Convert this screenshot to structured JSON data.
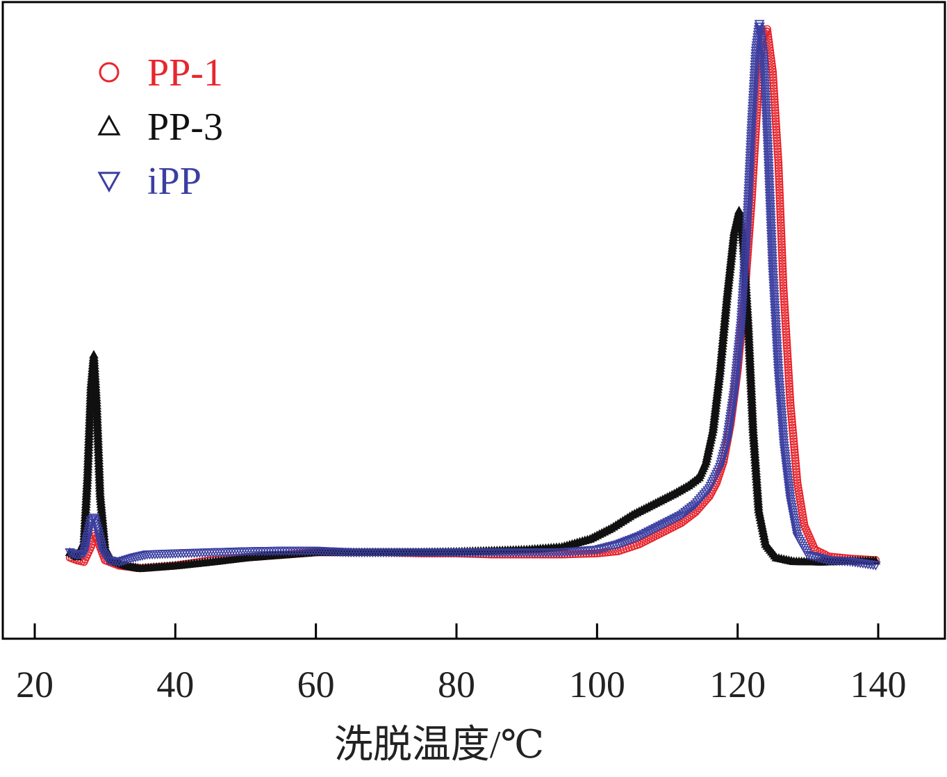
{
  "chart_data": {
    "type": "scatter",
    "xlabel": "洗脱温度/℃",
    "ylabel": "",
    "xlim": [
      18,
      150
    ],
    "ylim": [
      -0.12,
      1.05
    ],
    "x_ticks": [
      20,
      40,
      60,
      80,
      100,
      120,
      140
    ],
    "y_ticks": [],
    "grid": false,
    "legend_position": "top-left",
    "series": [
      {
        "name": "PP-1",
        "color": "#e8262d",
        "marker": "circle",
        "points": [
          [
            25,
            0.01
          ],
          [
            26,
            0.005
          ],
          [
            27,
            0.002
          ],
          [
            28,
            0.03
          ],
          [
            28.5,
            0.055
          ],
          [
            29,
            0.04
          ],
          [
            30,
            0.005
          ],
          [
            32,
            -0.005
          ],
          [
            35,
            -0.01
          ],
          [
            40,
            -0.005
          ],
          [
            45,
            0.005
          ],
          [
            50,
            0.01
          ],
          [
            55,
            0.015
          ],
          [
            60,
            0.02
          ],
          [
            65,
            0.02
          ],
          [
            70,
            0.02
          ],
          [
            75,
            0.018
          ],
          [
            80,
            0.018
          ],
          [
            85,
            0.016
          ],
          [
            90,
            0.016
          ],
          [
            95,
            0.016
          ],
          [
            100,
            0.018
          ],
          [
            103,
            0.022
          ],
          [
            106,
            0.035
          ],
          [
            109,
            0.055
          ],
          [
            112,
            0.075
          ],
          [
            114,
            0.095
          ],
          [
            116,
            0.125
          ],
          [
            117,
            0.15
          ],
          [
            118,
            0.19
          ],
          [
            119,
            0.26
          ],
          [
            120,
            0.36
          ],
          [
            121,
            0.5
          ],
          [
            122,
            0.68
          ],
          [
            123,
            0.9
          ],
          [
            123.5,
            0.98
          ],
          [
            124.2,
            1.0
          ],
          [
            125,
            0.92
          ],
          [
            125.8,
            0.75
          ],
          [
            126.5,
            0.52
          ],
          [
            127.5,
            0.3
          ],
          [
            128.5,
            0.15
          ],
          [
            129.5,
            0.07
          ],
          [
            131,
            0.025
          ],
          [
            133,
            0.012
          ],
          [
            136,
            0.008
          ],
          [
            140,
            0.005
          ]
        ]
      },
      {
        "name": "PP-3",
        "color": "#111111",
        "marker": "triangle-up",
        "points": [
          [
            25,
            0.02
          ],
          [
            26,
            0.012
          ],
          [
            27,
            0.04
          ],
          [
            27.5,
            0.16
          ],
          [
            28,
            0.33
          ],
          [
            28.4,
            0.39
          ],
          [
            28.8,
            0.3
          ],
          [
            29.3,
            0.13
          ],
          [
            30,
            0.03
          ],
          [
            31,
            0.005
          ],
          [
            33,
            -0.005
          ],
          [
            35,
            -0.01
          ],
          [
            40,
            -0.005
          ],
          [
            45,
            0.002
          ],
          [
            50,
            0.01
          ],
          [
            55,
            0.015
          ],
          [
            60,
            0.02
          ],
          [
            65,
            0.02
          ],
          [
            70,
            0.02
          ],
          [
            75,
            0.02
          ],
          [
            80,
            0.021
          ],
          [
            85,
            0.023
          ],
          [
            90,
            0.025
          ],
          [
            95,
            0.03
          ],
          [
            99,
            0.045
          ],
          [
            102,
            0.065
          ],
          [
            105,
            0.09
          ],
          [
            108,
            0.11
          ],
          [
            111,
            0.13
          ],
          [
            113,
            0.145
          ],
          [
            114.5,
            0.16
          ],
          [
            115.5,
            0.19
          ],
          [
            116.5,
            0.25
          ],
          [
            117.5,
            0.36
          ],
          [
            118.5,
            0.5
          ],
          [
            119.5,
            0.62
          ],
          [
            120.2,
            0.66
          ],
          [
            120.8,
            0.6
          ],
          [
            121.5,
            0.45
          ],
          [
            122.2,
            0.25
          ],
          [
            123,
            0.1
          ],
          [
            124,
            0.035
          ],
          [
            125.5,
            0.01
          ],
          [
            128,
            0.003
          ],
          [
            132,
            0.002
          ],
          [
            136,
            0.004
          ],
          [
            140,
            0.004
          ]
        ]
      },
      {
        "name": "iPP",
        "color": "#3b3fa0",
        "marker": "triangle-down",
        "points": [
          [
            25,
            0.02
          ],
          [
            26,
            0.015
          ],
          [
            27,
            0.018
          ],
          [
            27.5,
            0.05
          ],
          [
            28,
            0.08
          ],
          [
            28.5,
            0.085
          ],
          [
            29,
            0.06
          ],
          [
            29.7,
            0.02
          ],
          [
            30.5,
            0.005
          ],
          [
            32,
            0.002
          ],
          [
            34,
            0.01
          ],
          [
            36,
            0.016
          ],
          [
            40,
            0.018
          ],
          [
            45,
            0.02
          ],
          [
            50,
            0.022
          ],
          [
            55,
            0.023
          ],
          [
            60,
            0.023
          ],
          [
            65,
            0.02
          ],
          [
            70,
            0.02
          ],
          [
            75,
            0.02
          ],
          [
            80,
            0.02
          ],
          [
            85,
            0.02
          ],
          [
            90,
            0.02
          ],
          [
            95,
            0.02
          ],
          [
            100,
            0.025
          ],
          [
            103,
            0.035
          ],
          [
            106,
            0.05
          ],
          [
            109,
            0.07
          ],
          [
            112,
            0.09
          ],
          [
            114,
            0.11
          ],
          [
            116,
            0.14
          ],
          [
            117.5,
            0.18
          ],
          [
            118.5,
            0.23
          ],
          [
            119.5,
            0.32
          ],
          [
            120.5,
            0.45
          ],
          [
            121.3,
            0.62
          ],
          [
            122,
            0.82
          ],
          [
            122.6,
            0.96
          ],
          [
            123.1,
            1.01
          ],
          [
            123.7,
            0.95
          ],
          [
            124.3,
            0.78
          ],
          [
            125,
            0.55
          ],
          [
            125.8,
            0.36
          ],
          [
            126.6,
            0.22
          ],
          [
            127.5,
            0.12
          ],
          [
            128.5,
            0.05
          ],
          [
            130,
            0.015
          ],
          [
            133,
            0.005
          ],
          [
            136,
            0.003
          ],
          [
            140,
            -0.005
          ]
        ]
      }
    ]
  }
}
